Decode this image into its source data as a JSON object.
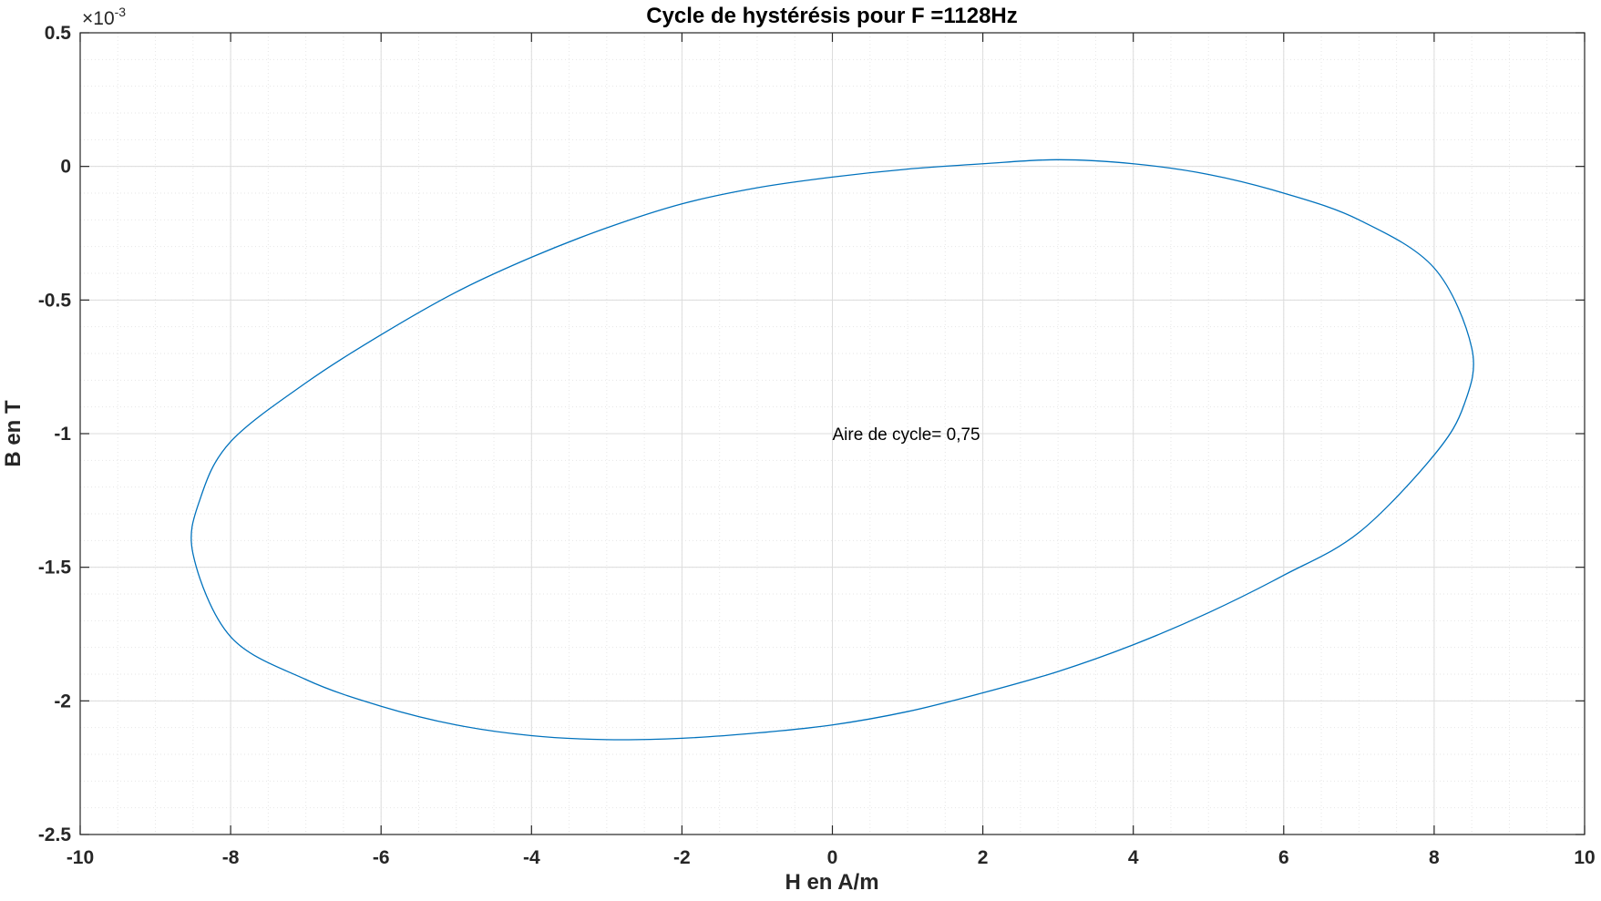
{
  "chart_data": {
    "type": "line",
    "title": "Cycle de hystérésis pour F =1128Hz",
    "xlabel": "H en A/m",
    "ylabel": "B en T",
    "xlim": [
      -10,
      10
    ],
    "ylim": [
      -0.0025,
      0.0005
    ],
    "y_exponent_label": {
      "base": "×10",
      "power": "-3"
    },
    "x_ticks": [
      -10,
      -8,
      -6,
      -4,
      -2,
      0,
      2,
      4,
      6,
      8,
      10
    ],
    "x_tick_labels": [
      "-10",
      "-8",
      "-6",
      "-4",
      "-2",
      "0",
      "2",
      "4",
      "6",
      "8",
      "10"
    ],
    "y_ticks": [
      0.0005,
      0,
      -0.0005,
      -0.001,
      -0.0015,
      -0.002,
      -0.0025
    ],
    "y_tick_labels": [
      "0.5",
      "0",
      "-0.5",
      "-1",
      "-1.5",
      "-2",
      "-2.5"
    ],
    "grid": true,
    "minor_grid": true,
    "series": [
      {
        "color": "#0072BD",
        "x": [
          -8.5,
          -8.4,
          -8.0,
          -7.0,
          -6.0,
          -5.0,
          -4.0,
          -3.0,
          -2.0,
          -1.0,
          0.0,
          1.0,
          2.0,
          3.0,
          4.0,
          5.0,
          6.0,
          7.0,
          8.0,
          8.5,
          8.4,
          8.0,
          7.0,
          6.0,
          5.0,
          4.0,
          3.0,
          2.0,
          1.0,
          0.0,
          -1.0,
          -2.0,
          -3.0,
          -4.0,
          -5.0,
          -6.0,
          -7.0,
          -8.0,
          -8.5
        ],
        "y": [
          -0.00145,
          -0.00124,
          -0.00103,
          -0.00081,
          -0.00063,
          -0.00047,
          -0.00034,
          -0.00023,
          -0.00014,
          -8e-05,
          -4e-05,
          -1e-05,
          1e-05,
          2.5e-05,
          1e-05,
          -3e-05,
          -0.0001,
          -0.0002,
          -0.00038,
          -0.00068,
          -0.00089,
          -0.00108,
          -0.00137,
          -0.00153,
          -0.00167,
          -0.00179,
          -0.00189,
          -0.00197,
          -0.00204,
          -0.00209,
          -0.00212,
          -0.00214,
          -0.002145,
          -0.00213,
          -0.00209,
          -0.00202,
          -0.00192,
          -0.00176,
          -0.00145
        ]
      }
    ],
    "annotations": [
      {
        "text": "Aire de cycle= 0,75",
        "x": 0,
        "y": -0.001
      }
    ]
  }
}
